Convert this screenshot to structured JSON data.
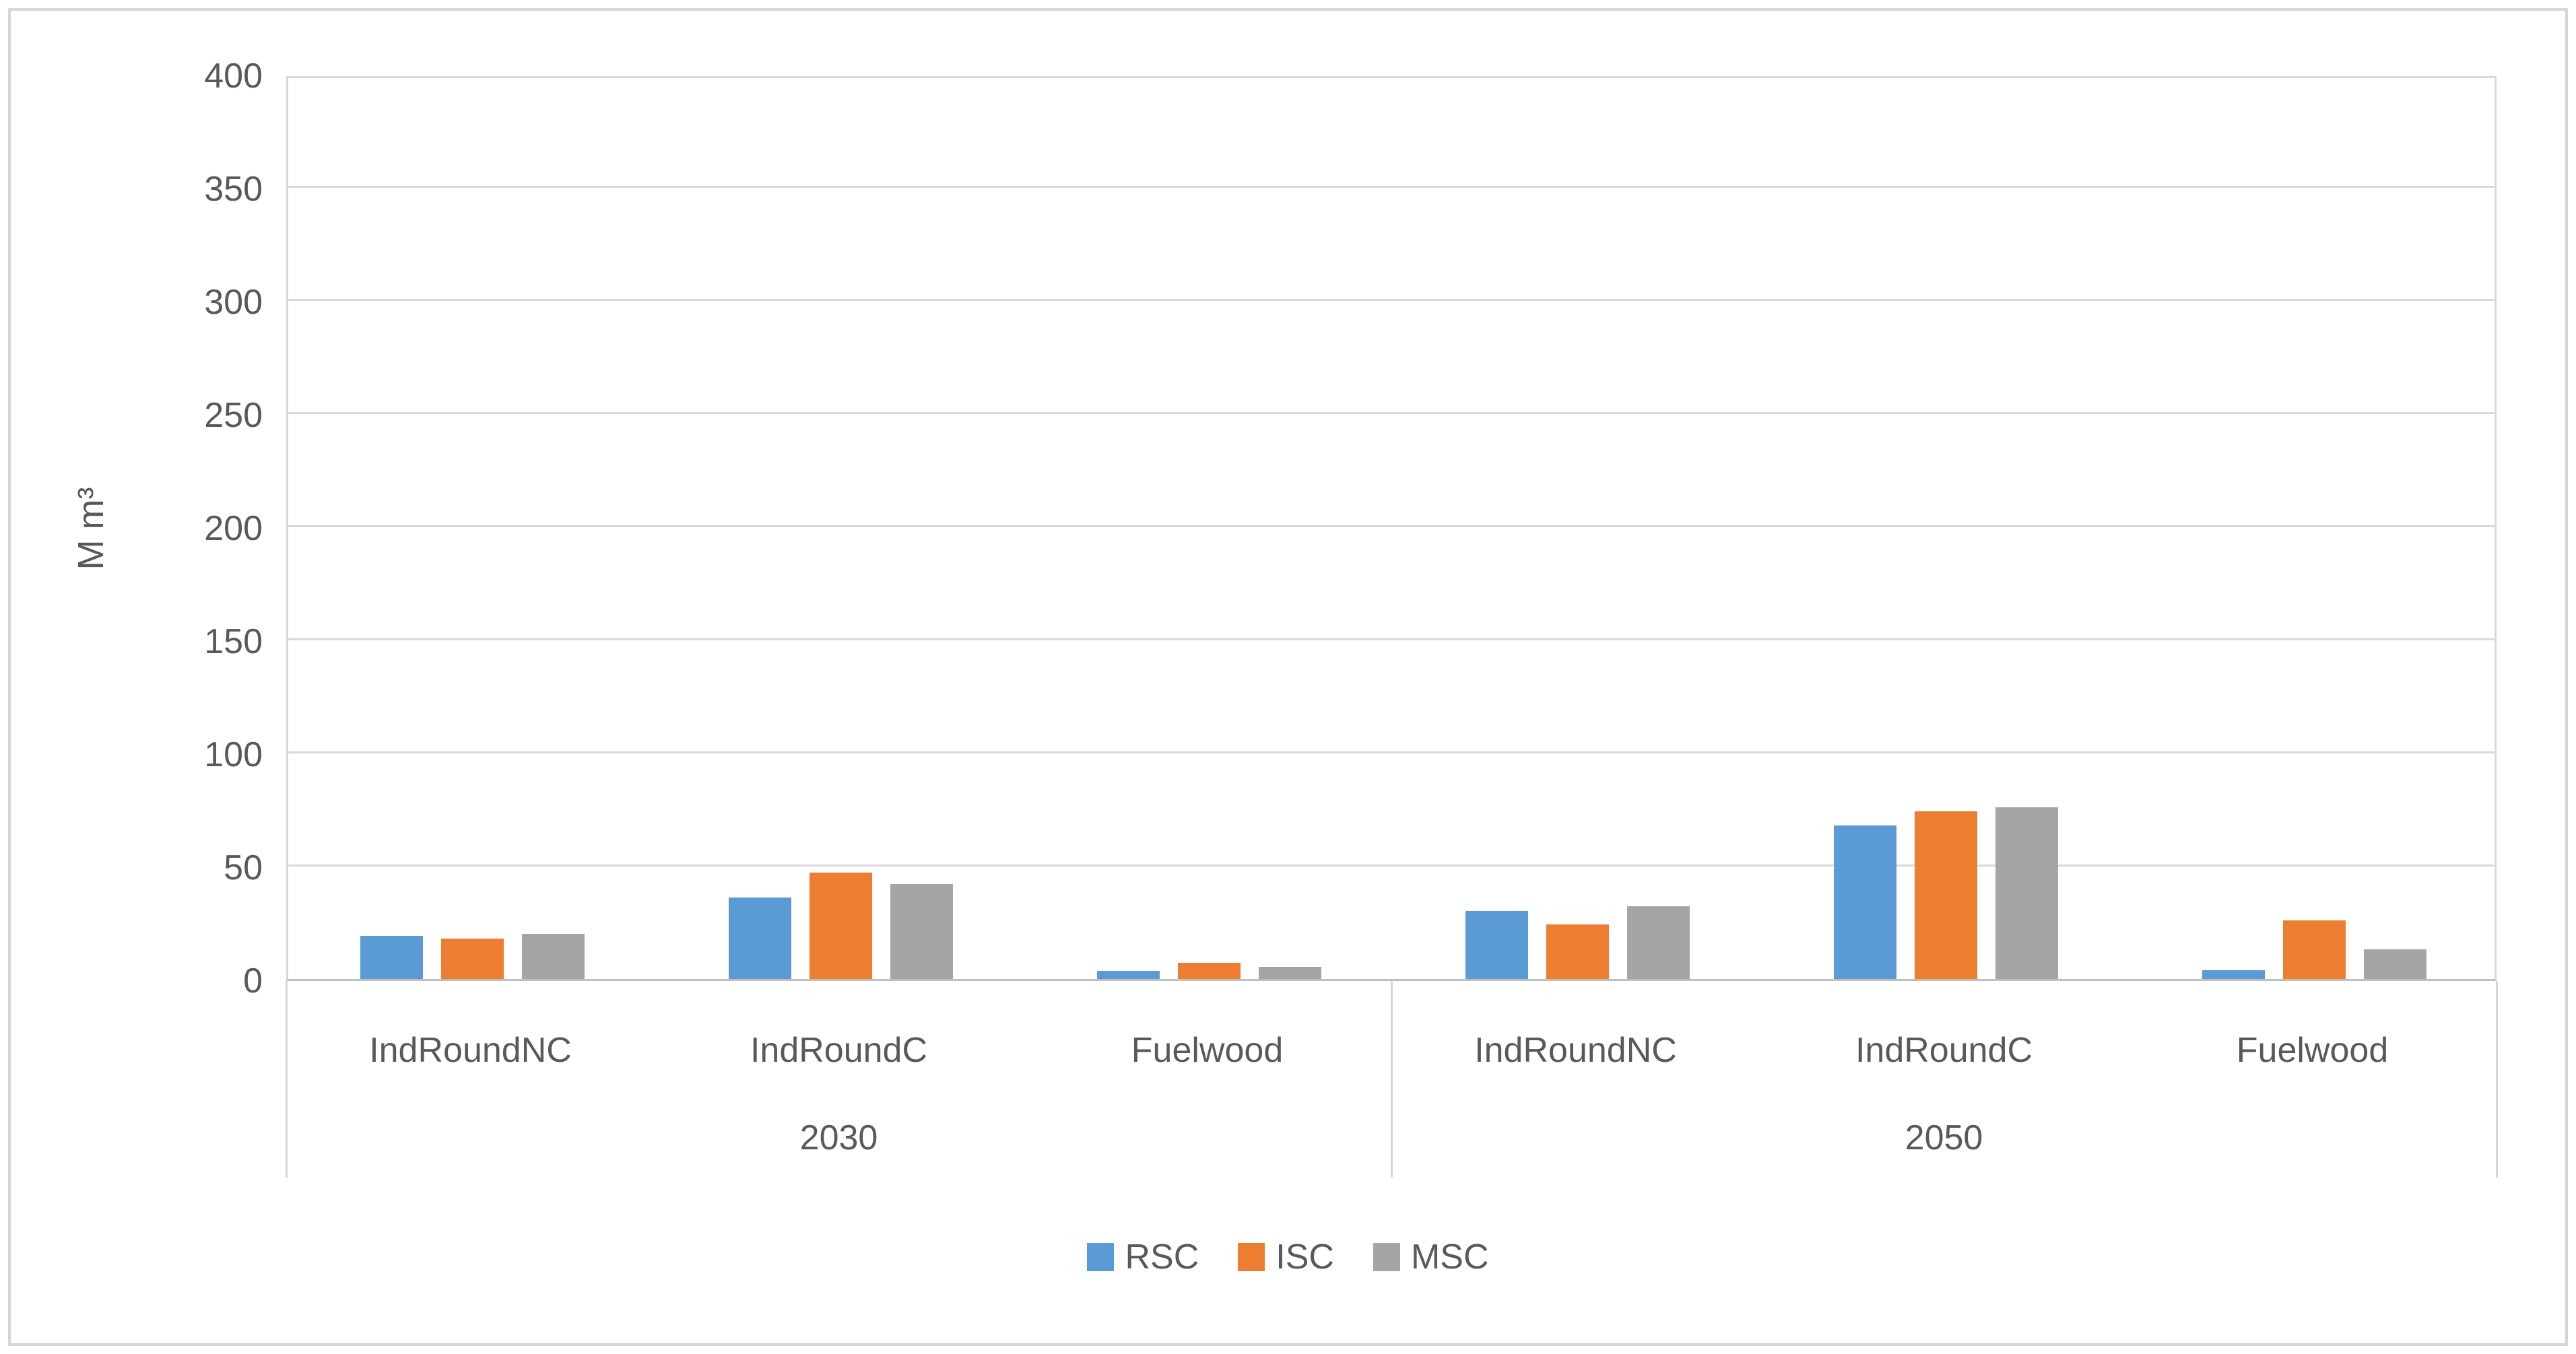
{
  "chart_data": {
    "type": "bar",
    "title": "",
    "xlabel": "",
    "ylabel": "M m³",
    "ylim": [
      0,
      400
    ],
    "ytick_step": 50,
    "yticks": [
      0,
      50,
      100,
      150,
      200,
      250,
      300,
      350,
      400
    ],
    "grid": true,
    "legend_position": "bottom",
    "groups": [
      "2030",
      "2050"
    ],
    "categories": [
      "IndRoundNC",
      "IndRoundC",
      "Fuelwood"
    ],
    "series": [
      {
        "name": "RSC",
        "color": "#5B9BD5",
        "values": [
          19,
          36,
          3.5,
          30,
          68,
          4
        ]
      },
      {
        "name": "ISC",
        "color": "#ED7D31",
        "values": [
          18,
          47,
          7,
          24,
          74,
          26
        ]
      },
      {
        "name": "MSC",
        "color": "#A5A5A5",
        "values": [
          20,
          42,
          5.5,
          32,
          76,
          13
        ]
      }
    ],
    "colors": {
      "gridline": "#d9d9d9",
      "axis_line": "#bfbfbf",
      "text": "#595959"
    }
  }
}
